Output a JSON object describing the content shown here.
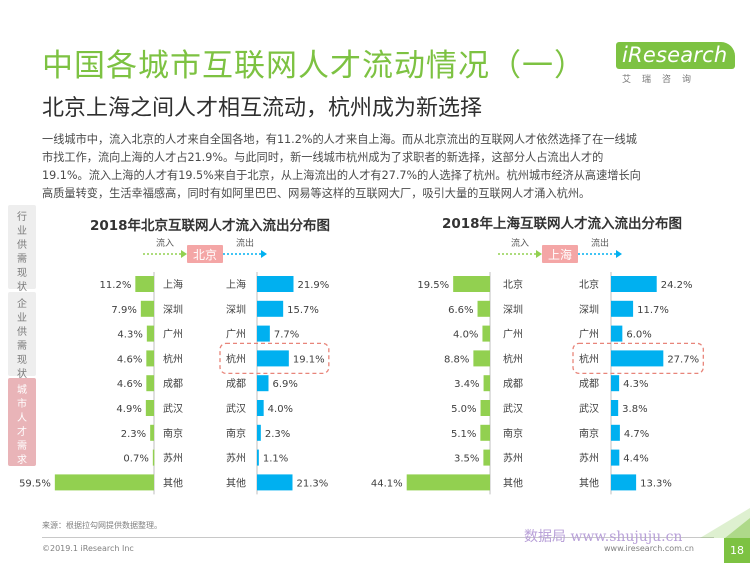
{
  "header": {
    "title": "中国各城市互联网人才流动情况（一）",
    "subtitle": "北京上海之间人才相互流动，杭州成为新选择"
  },
  "logo": {
    "word": "iResearch",
    "cn": "艾瑞咨询"
  },
  "intro_lines": [
    "一线城市中，流入北京的人才来自全国各地，有11.2%的人才来自上海。而从北京流出的互联网人才依然选择了在一线城",
    "市找工作，流向上海的人才占21.9%。与此同时，新一线城市杭州成为了求职者的新选择，这部分人占流出人才的",
    "19.1%。流入上海的人才有19.5%来自于北京，从上海流出的人才有27.7%的人选择了杭州。杭州城市经济从高速增长向",
    "高质量转变，生活幸福感高，同时有如阿里巴巴、网易等这样的互联网大厂，吸引大量的互联网人才涌入杭州。"
  ],
  "side_tabs": [
    {
      "label": "行业供需现状",
      "active": false
    },
    {
      "label": "企业供需现状",
      "active": false
    },
    {
      "label": "城市人才需求",
      "active": true
    }
  ],
  "colors": {
    "inflow": "#92d050",
    "outflow": "#00b0f0",
    "highlight": "#e8857a",
    "hub_label": "#f4a6a6",
    "brand": "#7dc242"
  },
  "chart_data": [
    {
      "type": "bar",
      "title": "2018年北京互联网人才流入流出分布图",
      "hub": "北京",
      "inflow_label": "流入",
      "outflow_label": "流出",
      "inflow": {
        "categories": [
          "上海",
          "深圳",
          "广州",
          "杭州",
          "成都",
          "武汉",
          "南京",
          "苏州",
          "其他"
        ],
        "values": [
          11.2,
          7.9,
          4.3,
          4.6,
          4.6,
          4.9,
          2.3,
          0.7,
          59.5
        ],
        "labels": [
          "11.2%",
          "7.9%",
          "4.3%",
          "4.6%",
          "4.6%",
          "4.9%",
          "2.3%",
          "0.7%",
          "59.5%"
        ]
      },
      "outflow": {
        "categories": [
          "上海",
          "深圳",
          "广州",
          "杭州",
          "成都",
          "武汉",
          "南京",
          "苏州",
          "其他"
        ],
        "values": [
          21.9,
          15.7,
          7.7,
          19.1,
          6.9,
          4.0,
          2.3,
          1.1,
          21.3
        ],
        "labels": [
          "21.9%",
          "15.7%",
          "7.7%",
          "19.1%",
          "6.9%",
          "4.0%",
          "2.3%",
          "1.1%",
          "21.3%"
        ]
      },
      "highlight": "杭州",
      "max": 60
    },
    {
      "type": "bar",
      "title": "2018年上海互联网人才流入流出分布图",
      "hub": "上海",
      "inflow_label": "流入",
      "outflow_label": "流出",
      "inflow": {
        "categories": [
          "北京",
          "深圳",
          "广州",
          "杭州",
          "成都",
          "武汉",
          "南京",
          "苏州",
          "其他"
        ],
        "values": [
          19.5,
          6.6,
          4.0,
          8.8,
          3.4,
          5.0,
          5.1,
          3.5,
          44.1
        ],
        "labels": [
          "19.5%",
          "6.6%",
          "4.0%",
          "8.8%",
          "3.4%",
          "5.0%",
          "5.1%",
          "3.5%",
          "44.1%"
        ]
      },
      "outflow": {
        "categories": [
          "北京",
          "深圳",
          "广州",
          "杭州",
          "成都",
          "武汉",
          "南京",
          "苏州",
          "其他"
        ],
        "values": [
          24.2,
          11.7,
          6.0,
          27.7,
          4.3,
          3.8,
          4.7,
          4.4,
          13.3
        ],
        "labels": [
          "24.2%",
          "11.7%",
          "6.0%",
          "27.7%",
          "4.3%",
          "3.8%",
          "4.7%",
          "4.4%",
          "13.3%"
        ]
      },
      "highlight": "杭州",
      "max": 45
    }
  ],
  "footer": {
    "source": "来源：根据拉勾网提供数据整理。",
    "copyright": "©2019.1 iResearch Inc",
    "url": "www.iresearch.com.cn",
    "page": "18",
    "watermark": "数据局 www.shujuju.cn"
  }
}
